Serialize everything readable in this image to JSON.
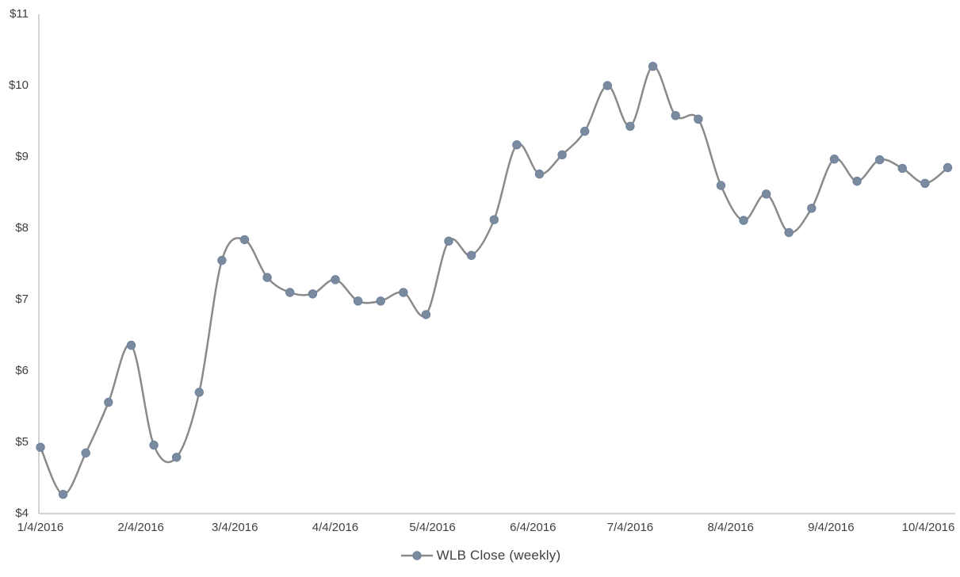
{
  "chart_data": {
    "type": "line",
    "title": "",
    "smooth": true,
    "grid": false,
    "ylim": [
      4,
      11
    ],
    "y_tick_values": [
      4,
      5,
      6,
      7,
      8,
      9,
      10,
      11
    ],
    "y_tick_labels": [
      "$4",
      "$5",
      "$6",
      "$7",
      "$8",
      "$9",
      "$10",
      "$11"
    ],
    "x_tick_labels": [
      "1/4/2016",
      "2/4/2016",
      "3/4/2016",
      "4/4/2016",
      "5/4/2016",
      "6/4/2016",
      "7/4/2016",
      "8/4/2016",
      "9/4/2016",
      "10/4/2016"
    ],
    "series": [
      {
        "name": "WLB Close (weekly)",
        "x": [
          "1/4/2016",
          "1/11/2016",
          "1/18/2016",
          "1/25/2016",
          "2/1/2016",
          "2/8/2016",
          "2/15/2016",
          "2/22/2016",
          "2/29/2016",
          "3/7/2016",
          "3/14/2016",
          "3/21/2016",
          "3/28/2016",
          "4/4/2016",
          "4/11/2016",
          "4/18/2016",
          "4/25/2016",
          "5/2/2016",
          "5/9/2016",
          "5/16/2016",
          "5/23/2016",
          "5/30/2016",
          "6/6/2016",
          "6/13/2016",
          "6/20/2016",
          "6/27/2016",
          "7/4/2016",
          "7/11/2016",
          "7/18/2016",
          "7/25/2016",
          "8/1/2016",
          "8/8/2016",
          "8/15/2016",
          "8/22/2016",
          "8/29/2016",
          "9/5/2016",
          "9/12/2016",
          "9/19/2016",
          "9/26/2016",
          "10/3/2016",
          "10/10/2016"
        ],
        "values": [
          4.93,
          4.27,
          4.85,
          5.56,
          6.36,
          4.96,
          4.79,
          5.7,
          7.55,
          7.84,
          7.31,
          7.1,
          7.08,
          7.28,
          6.98,
          6.98,
          7.1,
          6.79,
          7.82,
          7.62,
          8.12,
          9.17,
          8.76,
          9.03,
          9.36,
          10.0,
          9.43,
          10.27,
          9.58,
          9.53,
          8.6,
          8.11,
          8.48,
          7.94,
          8.28,
          8.97,
          8.66,
          8.96,
          8.84,
          8.63,
          8.85
        ]
      }
    ],
    "legend": {
      "label": "WLB Close (weekly)",
      "position": "bottom"
    },
    "colors": {
      "line": "#8A8A8A",
      "marker_fill": "#7A8BA0",
      "marker_border": "#6D819B",
      "axis": "#A7A7A7",
      "tick_text": "#3F3F3F"
    }
  }
}
